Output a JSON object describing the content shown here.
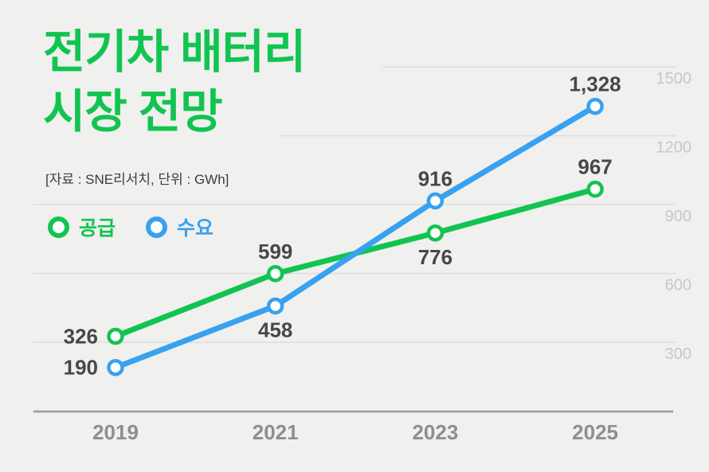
{
  "header": {
    "title_line1": "전기차 배터리",
    "title_line2": "시장 전망",
    "subtitle": "[자료 : SNE리서치, 단위 : GWh]"
  },
  "colors": {
    "background": "#f0f0ee",
    "title_green": "#11c451",
    "supply_green": "#11c451",
    "demand_blue": "#38a1f0",
    "value_label": "#474747",
    "axis_tick_gray": "#c7c7c5",
    "x_label_gray": "#8e8e8e",
    "gridline": "#dedddc",
    "axis_line": "#9a9a9a"
  },
  "legend": {
    "items": [
      {
        "label": "공급",
        "color": "#11c451"
      },
      {
        "label": "수요",
        "color": "#38a1f0"
      }
    ]
  },
  "chart_data": {
    "type": "line",
    "title": "전기차 배터리 시장 전망",
    "source_note": "[자료 : SNE리서치, 단위 : GWh]",
    "unit": "GWh",
    "categories": [
      "2019",
      "2021",
      "2023",
      "2025"
    ],
    "series": [
      {
        "name": "공급",
        "color": "#11c451",
        "values": [
          326,
          599,
          776,
          967
        ]
      },
      {
        "name": "수요",
        "color": "#38a1f0",
        "values": [
          190,
          458,
          916,
          1328
        ]
      }
    ],
    "y_ticks": [
      300,
      600,
      900,
      1200,
      1500
    ],
    "ylim": [
      300,
      1500
    ],
    "grid": true,
    "legend_position": "top-left",
    "xlabel": "",
    "ylabel": "GWh"
  }
}
